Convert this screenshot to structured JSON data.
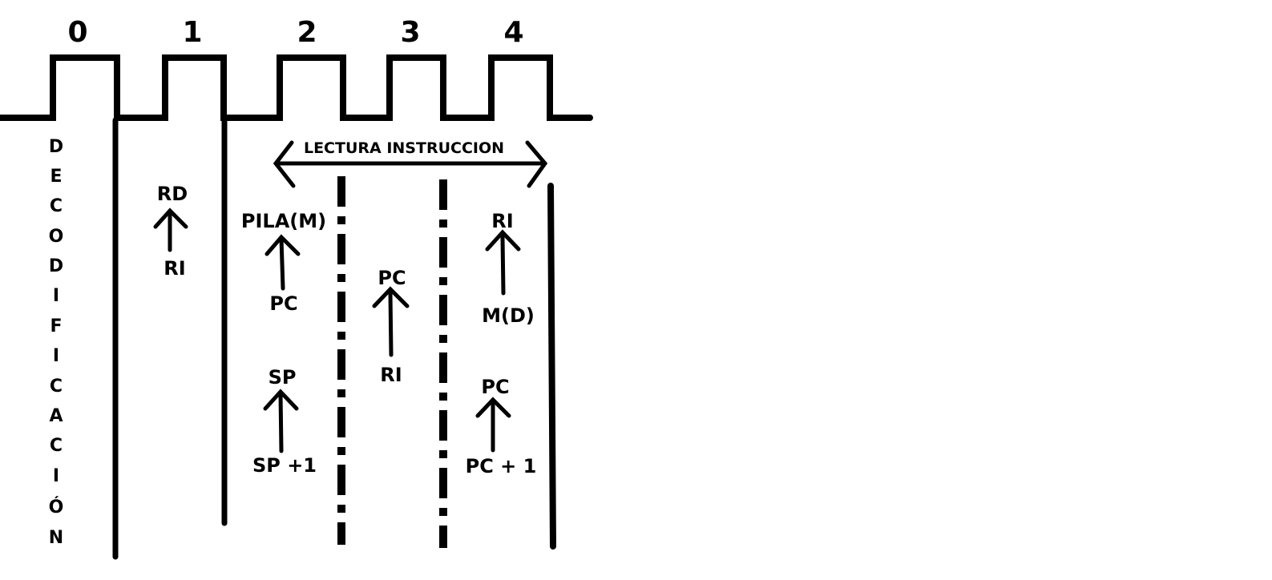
{
  "cycles": [
    "0",
    "1",
    "2",
    "3",
    "4"
  ],
  "decodificacion_letters": [
    "D",
    "E",
    "C",
    "O",
    "D",
    "I",
    "F",
    "I",
    "C",
    "A",
    "C",
    "I",
    "Ó",
    "N"
  ],
  "banner": {
    "label": "LECTURA INSTRUCCION"
  },
  "transfers": {
    "c1_rd": "RD",
    "c1_ri": "RI",
    "c2_pila": "PILA(M)",
    "c2_pc": "PC",
    "c2_sp": "SP",
    "c2_sp1": "SP +1",
    "c3_pc": "PC",
    "c3_ri": "RI",
    "c4_ri": "RI",
    "c4_md": "M(D)",
    "c4_pc": "PC",
    "c4_pc1": "PC + 1"
  },
  "colors": {
    "ink": "#000000",
    "background": "#ffffff"
  }
}
